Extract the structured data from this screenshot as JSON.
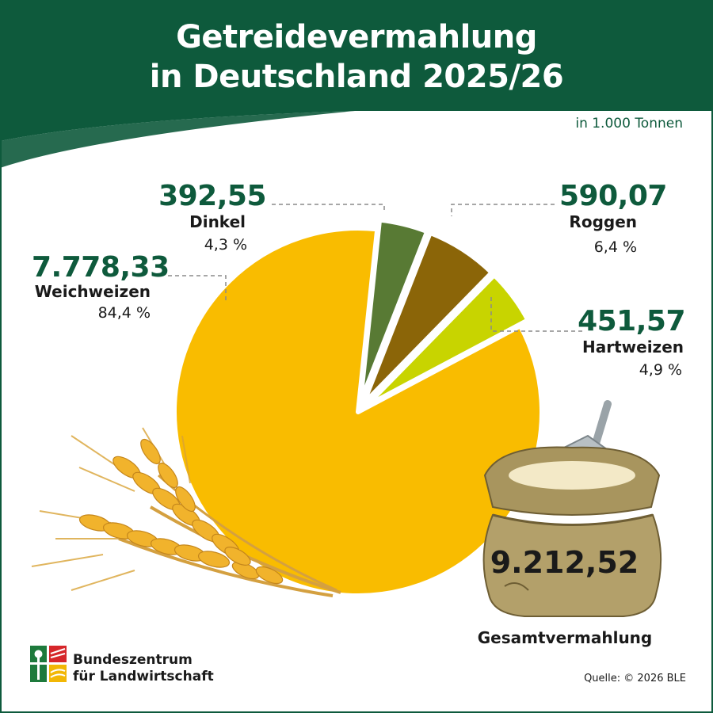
{
  "header": {
    "title_line1": "Getreidevermahlung",
    "title_line2": "in Deutschland 2025/26",
    "unit_note": "in 1.000 Tonnen"
  },
  "colors": {
    "header_green": "#0e5a3c",
    "weichweizen": "#f9bc00",
    "dinkel": "#587a34",
    "roggen": "#8b6508",
    "hartweizen": "#c8d400"
  },
  "chart_data": {
    "type": "pie",
    "title": "Getreidevermahlung in Deutschland 2025/26",
    "unit": "in 1.000 Tonnen",
    "slices": [
      {
        "name": "Weichweizen",
        "value": "7.778,33",
        "numeric": 7778.33,
        "percent": "84,4 %",
        "color": "#f9bc00"
      },
      {
        "name": "Dinkel",
        "value": "392,55",
        "numeric": 392.55,
        "percent": "4,3 %",
        "color": "#587a34"
      },
      {
        "name": "Roggen",
        "value": "590,07",
        "numeric": 590.07,
        "percent": "6,4 %",
        "color": "#8b6508"
      },
      {
        "name": "Hartweizen",
        "value": "451,57",
        "numeric": 451.57,
        "percent": "4,9 %",
        "color": "#c8d400"
      }
    ],
    "total": {
      "value": "9.212,52",
      "label": "Gesamtvermahlung"
    }
  },
  "footer": {
    "org_line1": "Bundeszentrum",
    "org_line2": "für Landwirtschaft",
    "source": "Quelle: © 2026 BLE"
  },
  "icons": [
    "wheat-ears-icon",
    "flour-sack-icon",
    "bzl-logo-icon"
  ]
}
